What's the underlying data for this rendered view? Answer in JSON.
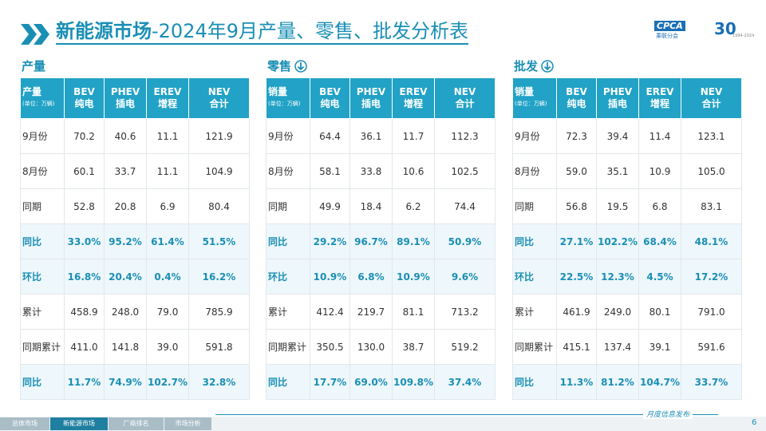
{
  "header": {
    "title_bold": "新能源市场",
    "title_rest": "-2024年9月产量、零售、批发分析表",
    "logo": "CPCA",
    "logo_sub": "乘联分会",
    "anniversary": "30",
    "years": "1994-2024"
  },
  "tables": [
    {
      "section": "产量",
      "corner": "产量",
      "unit": "(单位：万辆)",
      "columns": [
        [
          "BEV",
          "纯电"
        ],
        [
          "PHEV",
          "插电"
        ],
        [
          "EREV",
          "增程"
        ],
        [
          "NEV",
          "合计"
        ]
      ],
      "rows": [
        [
          "9月份",
          "70.2",
          "40.6",
          "11.1",
          "121.9"
        ],
        [
          "8月份",
          "60.1",
          "33.7",
          "11.1",
          "104.9"
        ],
        [
          "同期",
          "52.8",
          "20.8",
          "6.9",
          "80.4"
        ],
        [
          "同比",
          "33.0%",
          "95.2%",
          "61.4%",
          "51.5%"
        ],
        [
          "环比",
          "16.8%",
          "20.4%",
          "0.4%",
          "16.2%"
        ],
        [
          "累计",
          "458.9",
          "248.0",
          "79.0",
          "785.9"
        ],
        [
          "同期累计",
          "411.0",
          "141.8",
          "39.0",
          "591.8"
        ],
        [
          "同比",
          "11.7%",
          "74.9%",
          "102.7%",
          "32.8%"
        ]
      ]
    },
    {
      "section": "零售",
      "corner": "销量",
      "unit": "(单位：万辆)",
      "columns": [
        [
          "BEV",
          "纯电"
        ],
        [
          "PHEV",
          "插电"
        ],
        [
          "EREV",
          "增程"
        ],
        [
          "NEV",
          "合计"
        ]
      ],
      "rows": [
        [
          "9月份",
          "64.4",
          "36.1",
          "11.7",
          "112.3"
        ],
        [
          "8月份",
          "58.1",
          "33.8",
          "10.6",
          "102.5"
        ],
        [
          "同期",
          "49.9",
          "18.4",
          "6.2",
          "74.4"
        ],
        [
          "同比",
          "29.2%",
          "96.7%",
          "89.1%",
          "50.9%"
        ],
        [
          "环比",
          "10.9%",
          "6.8%",
          "10.9%",
          "9.6%"
        ],
        [
          "累计",
          "412.4",
          "219.7",
          "81.1",
          "713.2"
        ],
        [
          "同期累计",
          "350.5",
          "130.0",
          "38.7",
          "519.2"
        ],
        [
          "同比",
          "17.7%",
          "69.0%",
          "109.8%",
          "37.4%"
        ]
      ]
    },
    {
      "section": "批发",
      "corner": "销量",
      "unit": "(单位：万辆)",
      "columns": [
        [
          "BEV",
          "纯电"
        ],
        [
          "PHEV",
          "插电"
        ],
        [
          "EREV",
          "增程"
        ],
        [
          "NEV",
          "合计"
        ]
      ],
      "rows": [
        [
          "9月份",
          "72.3",
          "39.4",
          "11.4",
          "123.1"
        ],
        [
          "8月份",
          "59.0",
          "35.1",
          "10.9",
          "105.0"
        ],
        [
          "同期",
          "56.8",
          "19.5",
          "6.8",
          "83.1"
        ],
        [
          "同比",
          "27.1%",
          "102.2%",
          "68.4%",
          "48.1%"
        ],
        [
          "环比",
          "22.5%",
          "12.3%",
          "4.5%",
          "17.2%"
        ],
        [
          "累计",
          "461.9",
          "249.0",
          "80.1",
          "791.0"
        ],
        [
          "同期累计",
          "415.1",
          "137.4",
          "39.1",
          "591.6"
        ],
        [
          "同比",
          "11.3%",
          "81.2%",
          "104.7%",
          "33.7%"
        ]
      ]
    }
  ],
  "footer": {
    "tabs": [
      "总体市场",
      "新能源市场",
      "厂商排名",
      "市场分析"
    ],
    "note": "月度信息发布",
    "page": "6"
  }
}
